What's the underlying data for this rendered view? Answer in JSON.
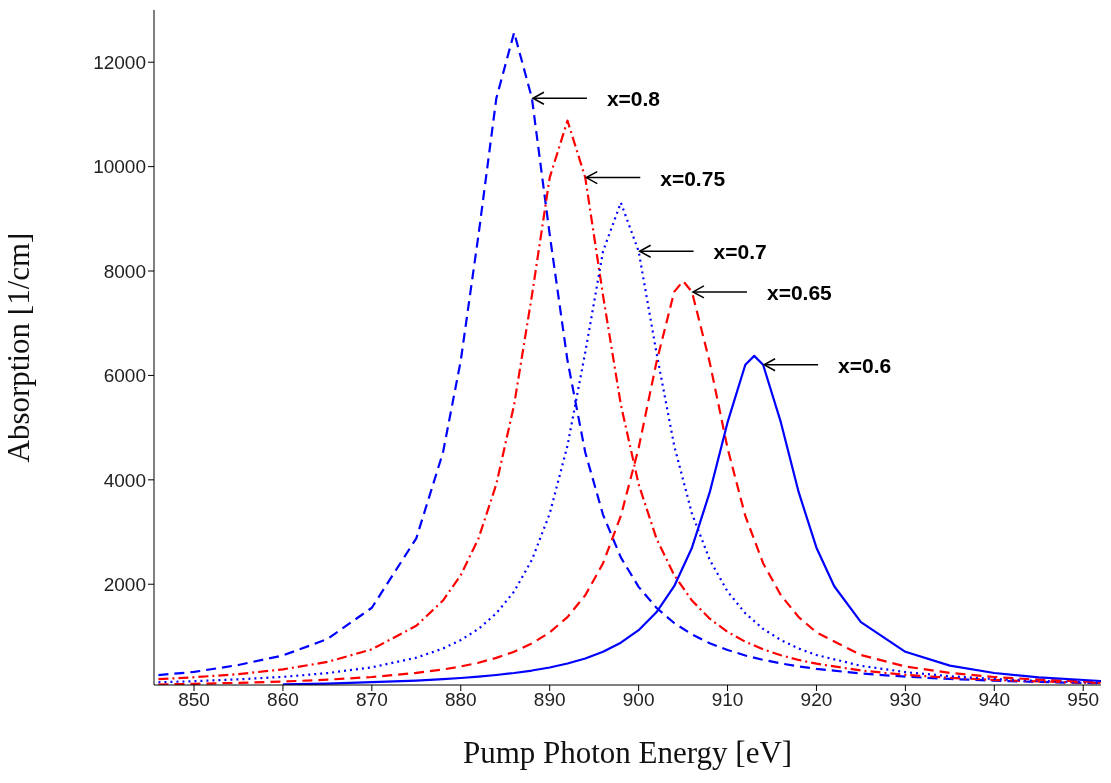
{
  "chart_data": {
    "type": "line",
    "xlabel": "Pump Photon Energy [eV]",
    "ylabel": "Absorption [1/cm]",
    "xlim": [
      845.5,
      952
    ],
    "xticks": [
      850,
      860,
      870,
      880,
      890,
      900,
      910,
      920,
      930,
      940,
      950
    ],
    "ylim": [
      70,
      13000
    ],
    "yticks": [
      2000,
      4000,
      6000,
      8000,
      10000,
      12000
    ],
    "grid": false,
    "marker": "none",
    "series": [
      {
        "color": "#0000ff",
        "line_style": "dashed",
        "x": [
          846,
          850,
          855,
          860,
          865,
          870,
          875,
          878,
          880,
          882,
          884,
          886,
          888,
          890,
          892,
          894,
          896,
          898,
          900,
          902,
          904,
          906,
          908,
          910,
          912,
          914,
          916,
          918,
          920,
          925,
          930,
          935,
          940,
          945,
          952
        ],
        "values": [
          260,
          320,
          454,
          636,
          949,
          1550,
          2880,
          4525,
          6285,
          8700,
          11310,
          12570,
          11310,
          8700,
          6285,
          4525,
          3330,
          2514,
          1950,
          1550,
          1257,
          1038,
          870,
          740,
          636,
          552,
          483,
          427,
          380,
          290,
          230,
          186,
          153,
          128,
          103
        ]
      },
      {
        "color": "#ff0000",
        "line_style": "dashdot",
        "x": [
          846,
          850,
          855,
          860,
          865,
          870,
          875,
          878,
          880,
          882,
          884,
          886,
          888,
          890,
          892,
          894,
          896,
          898,
          900,
          902,
          904,
          906,
          908,
          910,
          912,
          914,
          916,
          918,
          920,
          925,
          930,
          935,
          940,
          945,
          952
        ],
        "values": [
          182,
          218,
          279,
          370,
          512,
          753,
          1205,
          1688,
          2176,
          2880,
          3917,
          5440,
          7530,
          9790,
          10880,
          9790,
          7530,
          5440,
          3917,
          2880,
          2176,
          1688,
          1340,
          1088,
          899,
          753,
          640,
          550,
          478,
          348,
          265,
          208,
          167,
          138,
          108
        ]
      },
      {
        "color": "#0000ff",
        "line_style": "dotted",
        "x": [
          846,
          850,
          855,
          860,
          865,
          870,
          875,
          878,
          880,
          882,
          884,
          886,
          888,
          890,
          892,
          894,
          896,
          898,
          900,
          902,
          904,
          906,
          908,
          910,
          912,
          914,
          916,
          918,
          920,
          925,
          930,
          935,
          940,
          945,
          952
        ],
        "values": [
          122,
          143,
          178,
          226,
          298,
          409,
          593,
          769,
          931,
          1145,
          1443,
          1862,
          2467,
          3352,
          4655,
          6442,
          8379,
          9310,
          8379,
          6442,
          4655,
          3352,
          2467,
          1862,
          1443,
          1145,
          931,
          769,
          644,
          438,
          317,
          238,
          186,
          149,
          114
        ]
      },
      {
        "color": "#ff0000",
        "line_style": "dashed",
        "x": [
          846,
          850,
          855,
          860,
          865,
          870,
          875,
          878,
          880,
          882,
          884,
          886,
          888,
          890,
          892,
          894,
          896,
          898,
          900,
          902,
          904,
          905,
          906,
          908,
          910,
          912,
          914,
          916,
          918,
          920,
          925,
          930,
          935,
          940,
          945,
          952
        ],
        "values": [
          80,
          92,
          111,
          136,
          172,
          223,
          301,
          367,
          425,
          497,
          590,
          708,
          867,
          1078,
          1371,
          1789,
          2403,
          3308,
          4608,
          6248,
          7600,
          7810,
          7600,
          6248,
          4608,
          3308,
          2403,
          1789,
          1371,
          1078,
          645,
          425,
          301,
          223,
          172,
          125
        ]
      },
      {
        "color": "#0000ff",
        "line_style": "solid",
        "x": [
          860,
          865,
          870,
          875,
          878,
          880,
          882,
          884,
          886,
          888,
          890,
          892,
          894,
          896,
          898,
          900,
          902,
          904,
          906,
          908,
          910,
          912,
          913,
          914,
          916,
          918,
          920,
          922,
          925,
          930,
          935,
          940,
          945,
          952
        ],
        "values": [
          81,
          98,
          124,
          155,
          182,
          204,
          230,
          262,
          300,
          347,
          406,
          481,
          578,
          706,
          880,
          1120,
          1462,
          1962,
          2700,
          3763,
          5100,
          6205,
          6375,
          6205,
          5100,
          3763,
          2700,
          1962,
          1275,
          706,
          441,
          300,
          216,
          147
        ]
      }
    ],
    "annotations": [
      {
        "text": "x=0.8",
        "x": 888,
        "y": 11310
      },
      {
        "text": "x=0.75",
        "x": 894,
        "y": 9790
      },
      {
        "text": "x=0.7",
        "x": 900,
        "y": 8379
      },
      {
        "text": "x=0.65",
        "x": 906,
        "y": 7600
      },
      {
        "text": "x=0.6",
        "x": 914,
        "y": 6205
      }
    ]
  }
}
